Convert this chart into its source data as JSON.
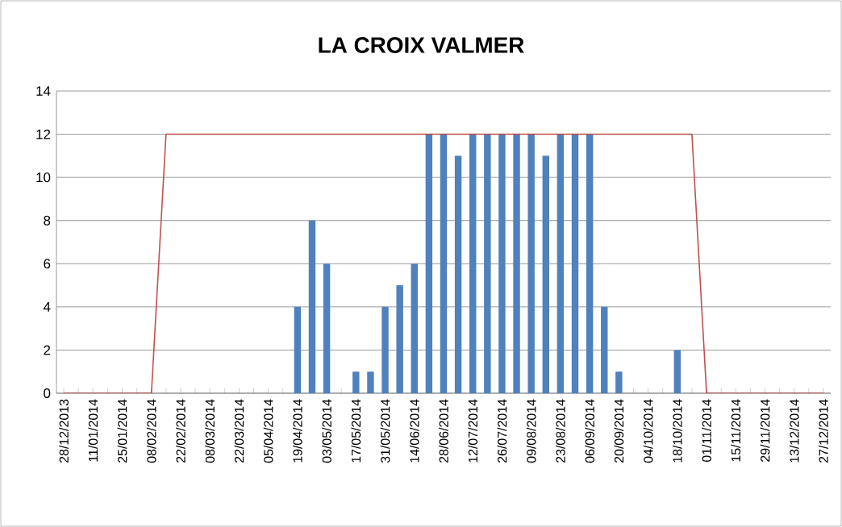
{
  "chart_data": {
    "type": "bar",
    "title": "LA CROIX VALMER",
    "categories": [
      "28/12/2013",
      null,
      "11/01/2014",
      null,
      "25/01/2014",
      null,
      "08/02/2014",
      null,
      "22/02/2014",
      null,
      "08/03/2014",
      null,
      "22/03/2014",
      null,
      "05/04/2014",
      null,
      "19/04/2014",
      null,
      "03/05/2014",
      null,
      "17/05/2014",
      null,
      "31/05/2014",
      null,
      "14/06/2014",
      null,
      "28/06/2014",
      null,
      "12/07/2014",
      null,
      "26/07/2014",
      null,
      "09/08/2014",
      null,
      "23/08/2014",
      null,
      "06/09/2014",
      null,
      "20/09/2014",
      null,
      "04/10/2014",
      null,
      "18/10/2014",
      null,
      "01/11/2014",
      null,
      "15/11/2014",
      null,
      "29/11/2014",
      null,
      "13/12/2014",
      null,
      "27/12/2014"
    ],
    "series": [
      {
        "color": "#4f81bd",
        "values": [
          0,
          0,
          0,
          0,
          0,
          0,
          0,
          0,
          0,
          0,
          0,
          0,
          0,
          0,
          0,
          0,
          4,
          8,
          6,
          0,
          1,
          1,
          4,
          5,
          6,
          12,
          12,
          11,
          12,
          12,
          12,
          12,
          12,
          11,
          12,
          12,
          12,
          4,
          1,
          0,
          0,
          0,
          2,
          0,
          0,
          0,
          0,
          0,
          0,
          0,
          0,
          0,
          0
        ]
      },
      {
        "type": "line",
        "color": "#c0504d",
        "values": [
          0,
          0,
          0,
          0,
          0,
          0,
          0,
          12,
          12,
          12,
          12,
          12,
          12,
          12,
          12,
          12,
          12,
          12,
          12,
          12,
          12,
          12,
          12,
          12,
          12,
          12,
          12,
          12,
          12,
          12,
          12,
          12,
          12,
          12,
          12,
          12,
          12,
          12,
          12,
          12,
          12,
          12,
          12,
          12,
          0,
          0,
          0,
          0,
          0,
          0,
          0,
          0,
          0
        ]
      }
    ],
    "ylim": [
      0,
      14
    ],
    "yticks": [
      0,
      2,
      4,
      6,
      8,
      10,
      12,
      14
    ],
    "grid": "y"
  }
}
